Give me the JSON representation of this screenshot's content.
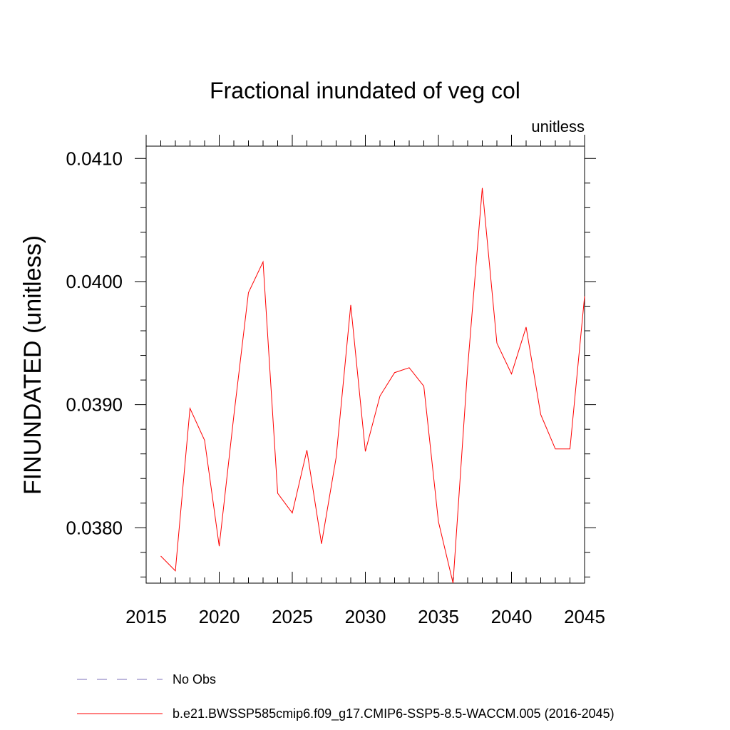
{
  "chart_data": {
    "type": "line",
    "title": "Fractional inundated of veg col",
    "units_label": "unitless",
    "ylabel": "FINUNDATED  (unitless)",
    "xlabel": "",
    "xlim": [
      2015,
      2045
    ],
    "ylim": [
      0.03755,
      0.0411
    ],
    "xticks": [
      2015,
      2020,
      2025,
      2030,
      2035,
      2040,
      2045
    ],
    "xtick_labels": [
      "2015",
      "2020",
      "2025",
      "2030",
      "2035",
      "2040",
      "2045"
    ],
    "yticks": [
      0.038,
      0.039,
      0.04,
      0.041
    ],
    "ytick_labels": [
      "0.0380",
      "0.0390",
      "0.0400",
      "0.0410"
    ],
    "grid": false,
    "legend_position": "bottom",
    "series": [
      {
        "name": "b.e21.BWSSP585cmip6.f09_g17.CMIP6-SSP5-8.5-WACCM.005 (2016-2045)",
        "color": "#ff0000",
        "style": "solid",
        "x": [
          2016,
          2017,
          2018,
          2019,
          2020,
          2021,
          2022,
          2023,
          2024,
          2025,
          2026,
          2027,
          2028,
          2029,
          2030,
          2031,
          2032,
          2033,
          2034,
          2035,
          2036,
          2037,
          2038,
          2039,
          2040,
          2041,
          2042,
          2043,
          2044,
          2045
        ],
        "y": [
          0.03777,
          0.03765,
          0.03897,
          0.03871,
          0.03785,
          0.03891,
          0.03991,
          0.04016,
          0.03828,
          0.03812,
          0.03863,
          0.03787,
          0.03857,
          0.03981,
          0.03862,
          0.03907,
          0.03926,
          0.0393,
          0.03915,
          0.03805,
          0.03755,
          0.0393,
          0.04076,
          0.0395,
          0.03925,
          0.03963,
          0.03892,
          0.03864,
          0.03864,
          0.03988
        ]
      },
      {
        "name": "No Obs",
        "color": "#7b6fb8",
        "style": "dashed",
        "x": [],
        "y": []
      }
    ]
  }
}
